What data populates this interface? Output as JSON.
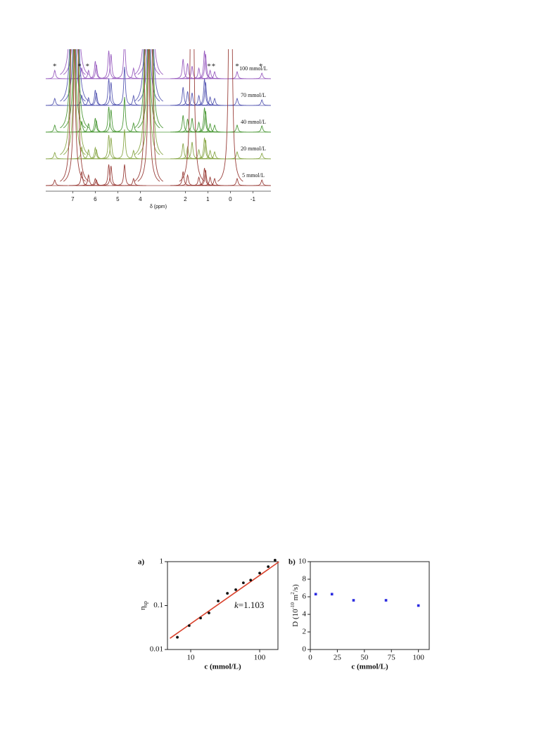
{
  "chart_data": [
    {
      "type": "spectrum",
      "xlabel": "δ (ppm)",
      "xlim": [
        8.2,
        -1.8
      ],
      "xticks": [
        7,
        6,
        5,
        4,
        2,
        1,
        0,
        -1
      ],
      "x": [
        7.8,
        7.0,
        6.85,
        6.6,
        6.3,
        6.0,
        5.95,
        5.4,
        5.3,
        4.7,
        4.3,
        3.7,
        3.55,
        2.1,
        1.9,
        1.7,
        1.4,
        1.15,
        1.1,
        0.9,
        0.7,
        0.0,
        -0.3,
        -1.4
      ],
      "annotations": [
        {
          "text": "*",
          "x": 7.8
        },
        {
          "text": "*",
          "x": 6.7
        },
        {
          "text": "*",
          "x": 6.35
        },
        {
          "text": "*",
          "x": 0.95
        },
        {
          "text": "*",
          "x": 0.75
        },
        {
          "text": "*",
          "x": -0.3
        },
        {
          "text": "*",
          "x": -1.35
        }
      ],
      "series": [
        {
          "name": "100 mmol/L",
          "color": "#9a5fc0",
          "values": [
            12,
            999,
            999,
            15,
            12,
            25,
            20,
            40,
            35,
            60,
            15,
            999,
            999,
            28,
            22,
            18,
            15,
            40,
            35,
            12,
            10,
            0,
            10,
            8
          ]
        },
        {
          "name": "70 mmol/L",
          "color": "#5a5cb4",
          "values": [
            10,
            999,
            999,
            14,
            11,
            22,
            18,
            38,
            33,
            55,
            14,
            999,
            999,
            26,
            20,
            18,
            14,
            38,
            33,
            12,
            10,
            0,
            10,
            8
          ]
        },
        {
          "name": "40 mmol/L",
          "color": "#4e9a3a",
          "values": [
            10,
            999,
            999,
            15,
            12,
            20,
            16,
            36,
            32,
            50,
            13,
            999,
            999,
            24,
            19,
            20,
            14,
            35,
            30,
            12,
            10,
            0,
            10,
            9
          ]
        },
        {
          "name": "20 mmol/L",
          "color": "#8aa84a",
          "values": [
            9,
            999,
            999,
            17,
            13,
            16,
            13,
            34,
            30,
            42,
            12,
            999,
            999,
            22,
            17,
            24,
            13,
            30,
            27,
            12,
            10,
            0,
            10,
            8
          ]
        },
        {
          "name": "5 mmol/L",
          "color": "#9a3f3a",
          "values": [
            8,
            999,
            999,
            20,
            15,
            10,
            8,
            30,
            28,
            30,
            10,
            999,
            999,
            20,
            15,
            999,
            12,
            25,
            22,
            12,
            10,
            999,
            10,
            8
          ]
        }
      ]
    },
    {
      "type": "scatter",
      "panel": "a)",
      "xlog": true,
      "ylog": true,
      "xlabel": "c (mmol/L)",
      "ylabel": [
        {
          "text": "η"
        },
        {
          "text": "sp",
          "sub": true
        }
      ],
      "xlim": [
        4.6,
        184
      ],
      "ylim": [
        0.01,
        1
      ],
      "xticks": [
        10,
        100
      ],
      "yticks": [
        0.01,
        0.1,
        1
      ],
      "x": [
        6.4,
        9.5,
        13.9,
        18.4,
        25,
        34,
        45,
        58,
        74,
        100,
        133,
        167
      ],
      "values": [
        0.019,
        0.035,
        0.052,
        0.068,
        0.127,
        0.19,
        0.23,
        0.33,
        0.38,
        0.55,
        0.77,
        1.08
      ],
      "color": "#111111",
      "marker": "circle",
      "fit": {
        "x": [
          5,
          190
        ],
        "values": [
          0.018,
          0.99
        ],
        "color": "#d9412b"
      },
      "annotation": {
        "italic": "k",
        "text": "=1.103"
      }
    },
    {
      "type": "scatter",
      "panel": "b)",
      "xlabel": "c (mmol/L)",
      "ylabel": [
        {
          "text": "D (10"
        },
        {
          "text": "-10",
          "sup": true
        },
        {
          "text": " m"
        },
        {
          "text": "2",
          "sup": true
        },
        {
          "text": "/s)"
        }
      ],
      "xlim": [
        0,
        110
      ],
      "ylim": [
        0,
        10
      ],
      "xticks": [
        0,
        25,
        50,
        75,
        100
      ],
      "yticks": [
        0,
        2,
        4,
        6,
        8,
        10
      ],
      "x": [
        5,
        20,
        40,
        70,
        100
      ],
      "values": [
        6.3,
        6.3,
        5.6,
        5.6,
        5.0
      ],
      "color": "#2a2ae0",
      "marker": "square"
    }
  ]
}
